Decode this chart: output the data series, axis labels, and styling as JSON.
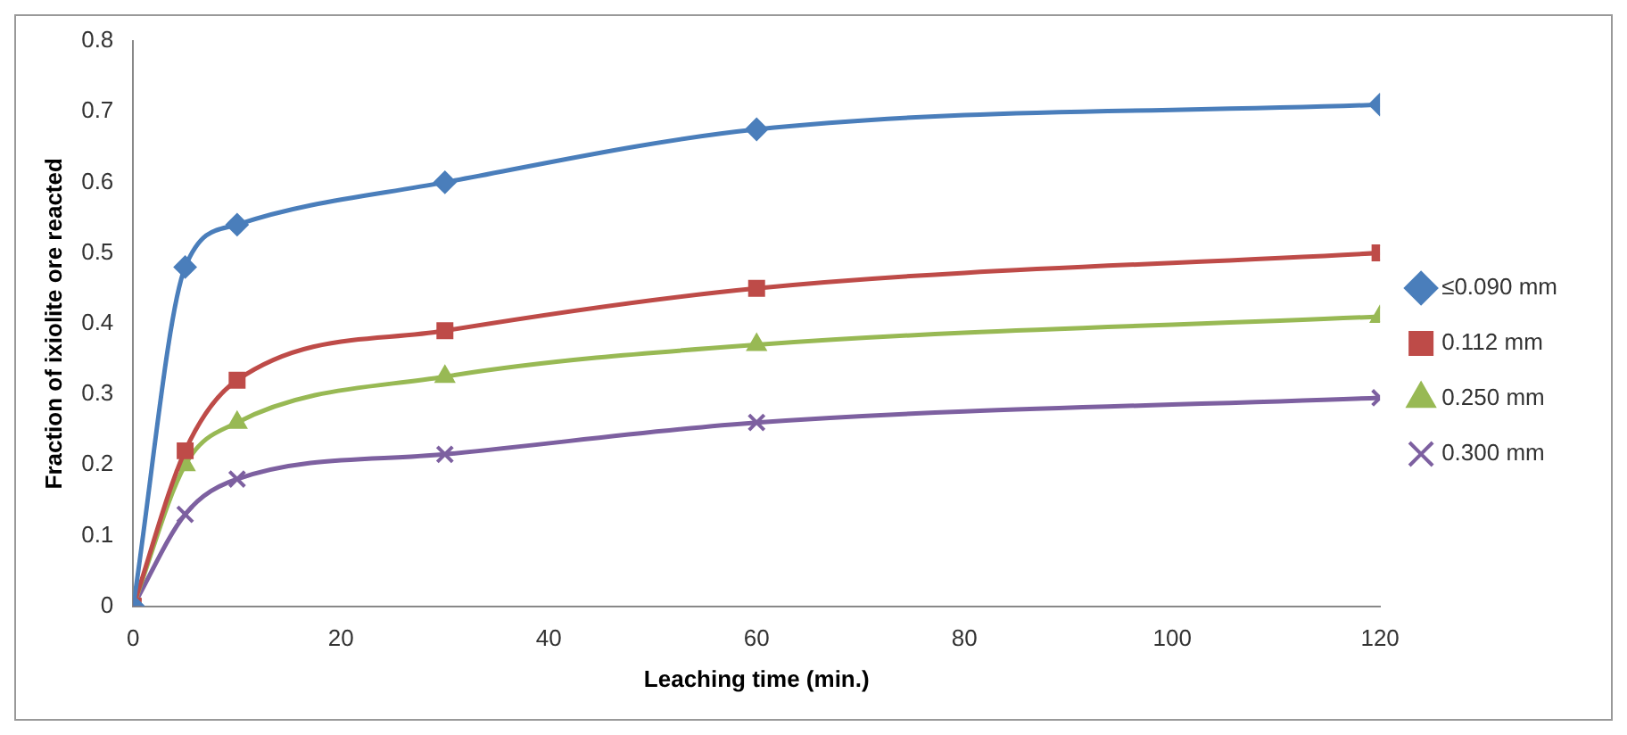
{
  "chart_data": {
    "type": "line",
    "xlabel": "Leaching time (min.)",
    "ylabel": "Fraction of ixiolite ore reacted",
    "x": [
      0,
      5,
      10,
      30,
      60,
      120
    ],
    "series": [
      {
        "name": "≤0.090 mm",
        "color": "#4a7ebb",
        "marker": "diamond",
        "values": [
          0,
          0.48,
          0.54,
          0.6,
          0.675,
          0.71
        ]
      },
      {
        "name": "0.112 mm",
        "color": "#be4b48",
        "marker": "square",
        "values": [
          0,
          0.22,
          0.32,
          0.39,
          0.45,
          0.5
        ]
      },
      {
        "name": "0.250 mm",
        "color": "#98b954",
        "marker": "triangle",
        "values": [
          0,
          0.2,
          0.26,
          0.325,
          0.37,
          0.41
        ]
      },
      {
        "name": "0.300 mm",
        "color": "#7d60a0",
        "marker": "cross",
        "values": [
          0,
          0.13,
          0.18,
          0.215,
          0.26,
          0.295
        ]
      }
    ],
    "xlim": [
      0,
      120
    ],
    "xticks": [
      0,
      20,
      40,
      60,
      80,
      100,
      120
    ],
    "ylim": [
      0,
      0.8
    ],
    "yticks": [
      0,
      0.1,
      0.2,
      0.3,
      0.4,
      0.5,
      0.6,
      0.7,
      0.8
    ],
    "grid": false,
    "legend": "right",
    "line_style": "solid"
  }
}
